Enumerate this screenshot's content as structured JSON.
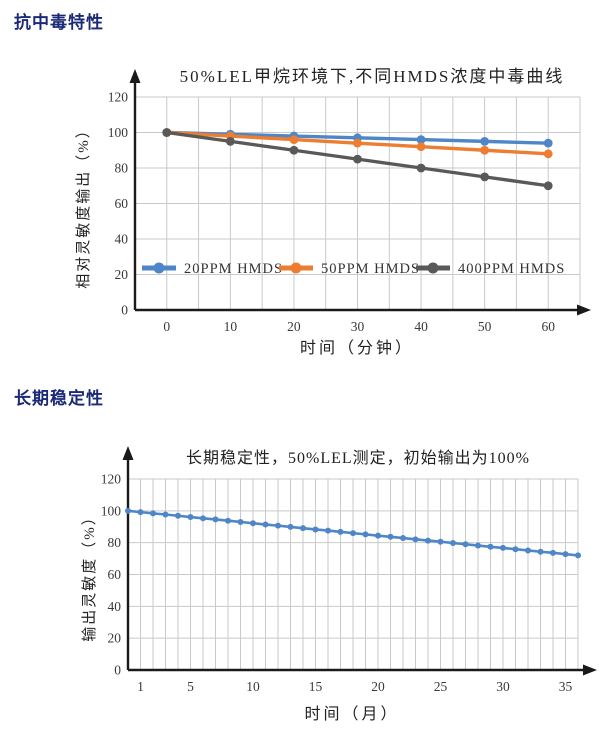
{
  "page": {
    "section1_title": "抗中毒特性",
    "section2_title": "长期稳定性"
  },
  "colors": {
    "heading": "#1b2a78",
    "axis": "#1a1a1a",
    "grid": "#c9c9c9",
    "tick_text": "#3a3a3a",
    "chart_text": "#222222",
    "series_blue": "#4e86c8",
    "series_orange": "#ed7d31",
    "series_gray": "#595959"
  },
  "chart_data": [
    {
      "type": "line",
      "title": "50%LEL甲烷环境下,不同HMDS浓度中毒曲线",
      "xlabel": "时间（分钟）",
      "ylabel": "相对灵敏度输出（%）",
      "x": [
        0,
        10,
        20,
        30,
        40,
        50,
        60
      ],
      "series": [
        {
          "name": "20PPM HMDS",
          "color": "#4e86c8",
          "values": [
            100,
            99,
            98,
            97,
            96,
            95,
            94
          ]
        },
        {
          "name": "50PPM HMDS",
          "color": "#ed7d31",
          "values": [
            100,
            98,
            96,
            94,
            92,
            90,
            88
          ]
        },
        {
          "name": "400PPM HMDS",
          "color": "#595959",
          "values": [
            100,
            95,
            90,
            85,
            80,
            75,
            70
          ]
        }
      ],
      "layout": {
        "xlim": [
          -5,
          65
        ],
        "ylim": [
          0,
          120
        ],
        "xticks": [
          0,
          10,
          20,
          30,
          40,
          50,
          60
        ],
        "yticks": [
          0,
          20,
          40,
          60,
          80,
          100,
          120
        ],
        "x_grid": {
          "start": 0,
          "end": 65,
          "step": 5
        },
        "y_grid": {
          "start": 20,
          "end": 120,
          "step": 20
        },
        "grid": true,
        "legend_position": "inside-bottom"
      }
    },
    {
      "type": "line",
      "title": "长期稳定性，50%LEL测定，初始输出为100%",
      "xlabel": "时间（月）",
      "ylabel": "输出灵敏度（%）",
      "x": [
        0,
        1,
        2,
        3,
        4,
        5,
        6,
        7,
        8,
        9,
        10,
        11,
        12,
        13,
        14,
        15,
        16,
        17,
        18,
        19,
        20,
        21,
        22,
        23,
        24,
        25,
        26,
        27,
        28,
        29,
        30,
        31,
        32,
        33,
        34,
        35,
        36
      ],
      "series": [
        {
          "name": "输出灵敏度",
          "color": "#4e86c8",
          "values": [
            100,
            99.2,
            98.4,
            97.7,
            96.9,
            96.1,
            95.3,
            94.6,
            93.8,
            93,
            92.2,
            91.4,
            90.7,
            89.9,
            89.1,
            88.3,
            87.6,
            86.8,
            86,
            85.2,
            84.4,
            83.7,
            82.9,
            82.1,
            81.3,
            80.6,
            79.8,
            79,
            78.2,
            77.4,
            76.7,
            75.9,
            75.1,
            74.3,
            73.6,
            72.8,
            72
          ]
        }
      ],
      "layout": {
        "xlim": [
          0,
          36
        ],
        "ylim": [
          0,
          120
        ],
        "xticks": [
          1,
          5,
          10,
          15,
          20,
          25,
          30,
          35
        ],
        "yticks": [
          0,
          20,
          40,
          60,
          80,
          100,
          120
        ],
        "x_grid": {
          "start": 1,
          "end": 36,
          "step": 1
        },
        "y_grid": {
          "start": 20,
          "end": 120,
          "step": 20
        },
        "grid": true,
        "legend_position": "none"
      }
    }
  ]
}
